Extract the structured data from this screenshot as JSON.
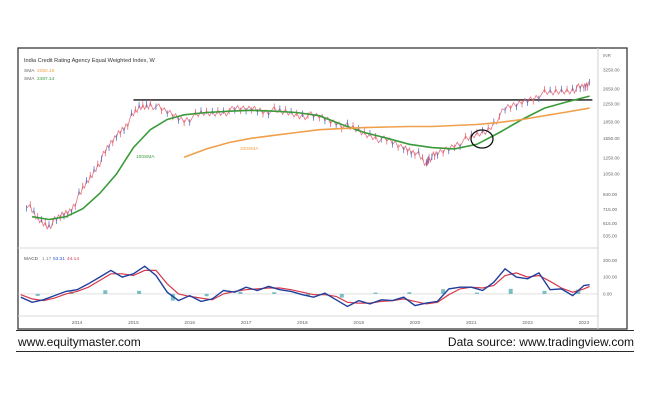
{
  "chart_data": {
    "type": "line",
    "title": "India Credit Rating Agency Equal Weighted Index, W",
    "legend": [
      {
        "label": "SMA",
        "value": "2050.19",
        "color": "#f0a04a"
      },
      {
        "label": "SMA",
        "value": "2487.14",
        "color": "#3a9a3a"
      }
    ],
    "annotations": [
      {
        "text": "100SMA",
        "color": "#3a9a3a"
      },
      {
        "text": "200SMA",
        "color": "#f0a04a"
      }
    ],
    "x_ticks": [
      "2014",
      "2015",
      "2016",
      "2017",
      "2018",
      "2019",
      "2020",
      "2021",
      "2022",
      "2023"
    ],
    "price_axis": {
      "scale": "log",
      "unit": "INR",
      "ticks": [
        "3250.00",
        "2650.00",
        "2250.00",
        "1850.00",
        "1550.00",
        "1250.00",
        "1050.00",
        "840.00",
        "715.00",
        "615.00",
        "535.00"
      ],
      "ylim": [
        480,
        3550
      ]
    },
    "resistance_level": 2350,
    "series": [
      {
        "kind": "price",
        "color": "#e05a6a",
        "x": [
          2013.1,
          2013.3,
          2013.5,
          2013.7,
          2013.9,
          2014.1,
          2014.3,
          2014.5,
          2014.7,
          2014.9,
          2015.1,
          2015.3,
          2015.6,
          2015.9,
          2016.2,
          2016.5,
          2016.8,
          2017.1,
          2017.4,
          2017.7,
          2018.0,
          2018.3,
          2018.6,
          2018.9,
          2019.2,
          2019.5,
          2019.8,
          2020.0,
          2020.2,
          2020.25,
          2020.4,
          2020.7,
          2021.0,
          2021.3,
          2021.6,
          2021.9,
          2022.2,
          2022.5,
          2022.8,
          2023.0,
          2023.1
        ],
        "values": [
          760,
          640,
          600,
          660,
          720,
          880,
          1080,
          1320,
          1600,
          1850,
          2150,
          2250,
          2050,
          1900,
          2000,
          2050,
          2100,
          2150,
          2100,
          2050,
          2000,
          1950,
          1850,
          1700,
          1600,
          1500,
          1400,
          1350,
          1150,
          1250,
          1300,
          1450,
          1550,
          1700,
          2100,
          2300,
          2500,
          2550,
          2650,
          2700,
          2850
        ]
      },
      {
        "kind": "sma",
        "name": "100SMA",
        "color": "#3a9a3a",
        "x": [
          2013.2,
          2013.5,
          2013.8,
          2014.1,
          2014.4,
          2014.7,
          2015.0,
          2015.3,
          2015.6,
          2015.9,
          2016.3,
          2016.7,
          2017.1,
          2017.5,
          2017.9,
          2018.3,
          2018.7,
          2019.1,
          2019.5,
          2019.9,
          2020.3,
          2020.7,
          2021.1,
          2021.5,
          2021.9,
          2022.3,
          2022.7,
          2023.1
        ],
        "values": [
          660,
          640,
          660,
          720,
          850,
          1050,
          1400,
          1700,
          1900,
          2000,
          2050,
          2080,
          2100,
          2080,
          2050,
          1980,
          1800,
          1650,
          1550,
          1450,
          1400,
          1380,
          1450,
          1650,
          1900,
          2150,
          2300,
          2450
        ]
      },
      {
        "kind": "sma",
        "name": "200SMA",
        "color": "#f0a04a",
        "x": [
          2015.9,
          2016.3,
          2016.7,
          2017.1,
          2017.5,
          2017.9,
          2018.3,
          2018.7,
          2019.1,
          2019.5,
          2019.9,
          2020.3,
          2020.7,
          2021.1,
          2021.5,
          2021.9,
          2022.3,
          2022.7,
          2023.1
        ],
        "values": [
          1260,
          1380,
          1480,
          1550,
          1600,
          1650,
          1700,
          1720,
          1740,
          1750,
          1760,
          1760,
          1780,
          1800,
          1840,
          1900,
          1980,
          2060,
          2150
        ]
      }
    ],
    "macd": {
      "label": "MACD",
      "values": [
        "1.17",
        "53.31",
        "44.14"
      ],
      "value_colors": [
        "#888888",
        "#2e5bd6",
        "#d6394b"
      ],
      "ticks": [
        "200.00",
        "100.00",
        "0.00"
      ],
      "ylim": [
        -120,
        250
      ],
      "zero": 0,
      "macd_line": {
        "color": "#1f3f9e",
        "x": [
          2013.0,
          2013.2,
          2013.4,
          2013.6,
          2013.8,
          2014.0,
          2014.2,
          2014.4,
          2014.6,
          2014.8,
          2015.0,
          2015.2,
          2015.4,
          2015.6,
          2015.8,
          2016.0,
          2016.2,
          2016.4,
          2016.6,
          2016.8,
          2017.0,
          2017.2,
          2017.4,
          2017.6,
          2017.8,
          2018.0,
          2018.2,
          2018.4,
          2018.6,
          2018.8,
          2019.0,
          2019.2,
          2019.4,
          2019.6,
          2019.8,
          2020.0,
          2020.2,
          2020.4,
          2020.6,
          2020.8,
          2021.0,
          2021.2,
          2021.4,
          2021.6,
          2021.8,
          2022.0,
          2022.2,
          2022.4,
          2022.6,
          2022.8,
          2023.0,
          2023.1
        ],
        "values": [
          -20,
          -50,
          -35,
          -10,
          15,
          25,
          60,
          100,
          140,
          100,
          120,
          165,
          110,
          10,
          -40,
          -10,
          -45,
          -30,
          20,
          10,
          40,
          20,
          45,
          25,
          15,
          -5,
          -20,
          5,
          -35,
          -75,
          -40,
          -60,
          -35,
          -40,
          -20,
          -70,
          -55,
          -45,
          30,
          40,
          40,
          20,
          70,
          150,
          100,
          90,
          125,
          25,
          30,
          -10,
          50,
          55
        ]
      },
      "signal_line": {
        "color": "#d6394b",
        "x": [
          2013.0,
          2013.2,
          2013.4,
          2013.6,
          2013.8,
          2014.0,
          2014.2,
          2014.4,
          2014.6,
          2014.8,
          2015.0,
          2015.2,
          2015.4,
          2015.6,
          2015.8,
          2016.0,
          2016.2,
          2016.4,
          2016.6,
          2016.8,
          2017.0,
          2017.2,
          2017.4,
          2017.6,
          2017.8,
          2018.0,
          2018.2,
          2018.4,
          2018.6,
          2018.8,
          2019.0,
          2019.2,
          2019.4,
          2019.6,
          2019.8,
          2020.0,
          2020.2,
          2020.4,
          2020.6,
          2020.8,
          2021.0,
          2021.2,
          2021.4,
          2021.6,
          2021.8,
          2022.0,
          2022.2,
          2022.4,
          2022.6,
          2022.8,
          2023.0,
          2023.1
        ],
        "values": [
          -5,
          -30,
          -40,
          -25,
          0,
          15,
          40,
          80,
          120,
          120,
          110,
          140,
          140,
          60,
          0,
          -15,
          -25,
          -35,
          0,
          15,
          25,
          30,
          35,
          35,
          25,
          10,
          -5,
          -5,
          -15,
          -50,
          -55,
          -55,
          -45,
          -40,
          -30,
          -45,
          -60,
          -50,
          -5,
          30,
          40,
          35,
          50,
          110,
          125,
          100,
          110,
          75,
          35,
          10,
          30,
          45
        ]
      },
      "histogram": {
        "x": [
          2013.3,
          2013.9,
          2014.5,
          2015.1,
          2015.7,
          2016.3,
          2016.9,
          2017.5,
          2018.1,
          2018.7,
          2019.3,
          2019.9,
          2020.5,
          2021.1,
          2021.7,
          2022.3,
          2022.9
        ],
        "values": [
          -12,
          14,
          22,
          18,
          -40,
          -14,
          12,
          10,
          -10,
          -22,
          8,
          10,
          28,
          8,
          30,
          18,
          26
        ]
      }
    },
    "y_axis_top_label": "INR"
  },
  "footer": {
    "left": "www.equitymaster.com",
    "right": "Data source: www.tradingview.com"
  }
}
